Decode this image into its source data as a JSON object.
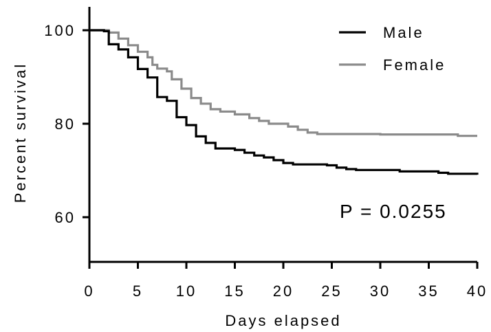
{
  "chart_data": {
    "type": "line",
    "step": true,
    "xlabel": "Days elapsed",
    "ylabel": "Percent survival",
    "xlim": [
      0,
      40
    ],
    "ylim": [
      50,
      105
    ],
    "x_ticks": [
      0,
      5,
      10,
      15,
      20,
      25,
      30,
      35,
      40
    ],
    "y_ticks": [
      60,
      80,
      100
    ],
    "grid": false,
    "legend_position": "top-right",
    "annotation": "P = 0.0255",
    "series": [
      {
        "name": "Male",
        "color": "#000000",
        "points": [
          [
            0,
            100
          ],
          [
            1.5,
            99.8
          ],
          [
            2,
            97
          ],
          [
            3,
            95.9
          ],
          [
            4,
            94.2
          ],
          [
            5,
            91.7
          ],
          [
            6,
            89.9
          ],
          [
            7,
            85.7
          ],
          [
            8,
            84.9
          ],
          [
            9,
            81.4
          ],
          [
            10,
            79.7
          ],
          [
            11,
            77.3
          ],
          [
            12,
            75.9
          ],
          [
            13,
            74.7
          ],
          [
            15,
            74.4
          ],
          [
            16,
            73.8
          ],
          [
            17,
            73.2
          ],
          [
            18,
            72.8
          ],
          [
            19,
            72.2
          ],
          [
            20,
            71.6
          ],
          [
            21,
            71.3
          ],
          [
            24.5,
            71.1
          ],
          [
            25.5,
            70.6
          ],
          [
            26.5,
            70.3
          ],
          [
            27.5,
            70.1
          ],
          [
            32,
            69.8
          ],
          [
            36,
            69.5
          ],
          [
            37,
            69.3
          ],
          [
            39,
            69.3
          ],
          [
            40,
            69.1
          ]
        ]
      },
      {
        "name": "Female",
        "color": "#8a8a8a",
        "points": [
          [
            0,
            100
          ],
          [
            2,
            99.5
          ],
          [
            3,
            98.2
          ],
          [
            4,
            96.8
          ],
          [
            5,
            95.4
          ],
          [
            6,
            94.2
          ],
          [
            6.5,
            92.6
          ],
          [
            7,
            91.8
          ],
          [
            8,
            91.2
          ],
          [
            8.5,
            89.5
          ],
          [
            9.5,
            87.5
          ],
          [
            10.5,
            85.5
          ],
          [
            11.5,
            84.3
          ],
          [
            12.5,
            83.1
          ],
          [
            13.5,
            82.6
          ],
          [
            15,
            82
          ],
          [
            16.5,
            81.2
          ],
          [
            17.5,
            80.6
          ],
          [
            18.5,
            80
          ],
          [
            20.5,
            79.4
          ],
          [
            21.5,
            78.7
          ],
          [
            22.5,
            78.1
          ],
          [
            23.5,
            77.8
          ],
          [
            30,
            77.7
          ],
          [
            38,
            77.4
          ],
          [
            40,
            77.4
          ]
        ]
      }
    ]
  }
}
